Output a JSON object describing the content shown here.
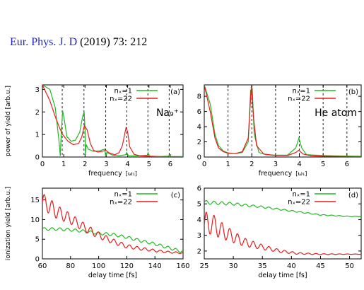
{
  "header": {
    "journal": "Eur. Phys. J. D",
    "citation": "(2019) 73: 212"
  },
  "colors": {
    "green": "#22b822",
    "red": "#e81c1c",
    "journal": "#2626c8"
  },
  "chart_data": [
    {
      "panel": "(a)",
      "type": "line",
      "ylabel": "power of yield [arb.u.]",
      "xlabel": "frequency",
      "xlabel_unit": "[ω₁]",
      "xlim": [
        0,
        6.6
      ],
      "ylim": [
        0,
        3.2
      ],
      "xticks": [
        "0",
        "1",
        "2",
        "3",
        "4",
        "5",
        "6"
      ],
      "yticks": [
        "0",
        "1",
        "2",
        "3"
      ],
      "annotation": "Na₉⁺",
      "vlines": [
        0.93,
        1.95,
        2.97,
        3.96,
        4.95,
        5.95
      ],
      "legend_position": "top-right",
      "series": [
        {
          "name": "nₓ=1",
          "color": "green",
          "points": [
            [
              0,
              3.2
            ],
            [
              0.35,
              3.0
            ],
            [
              0.6,
              2.2
            ],
            [
              0.78,
              0.7
            ],
            [
              0.84,
              0.05
            ],
            [
              0.88,
              1.0
            ],
            [
              0.95,
              2.05
            ],
            [
              1.02,
              1.7
            ],
            [
              1.15,
              0.9
            ],
            [
              1.35,
              0.7
            ],
            [
              1.55,
              0.75
            ],
            [
              1.75,
              1.1
            ],
            [
              1.9,
              1.85
            ],
            [
              1.96,
              2.0
            ],
            [
              2.0,
              1.2
            ],
            [
              2.02,
              0.1
            ],
            [
              2.06,
              0.55
            ],
            [
              2.15,
              0.35
            ],
            [
              2.4,
              0.25
            ],
            [
              2.7,
              0.28
            ],
            [
              2.93,
              0.35
            ],
            [
              2.97,
              0.02
            ],
            [
              3.02,
              0.2
            ],
            [
              3.3,
              0.08
            ],
            [
              3.6,
              0.06
            ],
            [
              3.9,
              0.1
            ],
            [
              3.96,
              0.2
            ],
            [
              4.03,
              0.05
            ],
            [
              4.5,
              0.05
            ],
            [
              4.92,
              0.08
            ],
            [
              4.96,
              0.2
            ],
            [
              5.0,
              0.03
            ],
            [
              5.5,
              0.02
            ],
            [
              5.92,
              0.04
            ],
            [
              5.96,
              0.1
            ],
            [
              6.0,
              0.02
            ],
            [
              6.6,
              0.02
            ]
          ]
        },
        {
          "name": "nₓ=22",
          "color": "red",
          "points": [
            [
              0,
              3.2
            ],
            [
              0.35,
              2.5
            ],
            [
              0.6,
              1.8
            ],
            [
              0.8,
              1.3
            ],
            [
              0.95,
              1.0
            ],
            [
              1.2,
              0.7
            ],
            [
              1.45,
              0.55
            ],
            [
              1.7,
              0.6
            ],
            [
              1.85,
              0.9
            ],
            [
              1.97,
              1.4
            ],
            [
              2.1,
              1.2
            ],
            [
              2.25,
              0.6
            ],
            [
              2.4,
              0.3
            ],
            [
              2.6,
              0.22
            ],
            [
              2.8,
              0.25
            ],
            [
              2.97,
              0.3
            ],
            [
              3.1,
              0.2
            ],
            [
              3.4,
              0.1
            ],
            [
              3.6,
              0.2
            ],
            [
              3.75,
              0.5
            ],
            [
              3.88,
              1.1
            ],
            [
              3.93,
              1.33
            ],
            [
              4.0,
              1.1
            ],
            [
              4.1,
              0.45
            ],
            [
              4.3,
              0.12
            ],
            [
              4.6,
              0.05
            ],
            [
              5.0,
              0.04
            ],
            [
              5.5,
              0.02
            ],
            [
              6.6,
              0.01
            ]
          ]
        }
      ]
    },
    {
      "panel": "(b)",
      "type": "line",
      "ylabel": "",
      "xlabel": "frequency",
      "xlabel_unit": "[ω₁]",
      "xlim": [
        0,
        6.6
      ],
      "ylim": [
        0,
        9.5
      ],
      "xticks": [
        "0",
        "1",
        "2",
        "3",
        "4",
        "5",
        "6"
      ],
      "yticks": [
        "0",
        "2",
        "4",
        "6",
        "8"
      ],
      "annotation": "He atom",
      "vlines": [
        1,
        2,
        3,
        4,
        5,
        6
      ],
      "legend_position": "top-right",
      "series": [
        {
          "name": "nₓ=1",
          "color": "green",
          "points": [
            [
              0,
              9.5
            ],
            [
              0.25,
              7.0
            ],
            [
              0.45,
              3.0
            ],
            [
              0.6,
              1.5
            ],
            [
              0.8,
              0.8
            ],
            [
              1.0,
              0.55
            ],
            [
              1.3,
              0.45
            ],
            [
              1.6,
              0.6
            ],
            [
              1.85,
              2.0
            ],
            [
              1.95,
              8.8
            ],
            [
              2.02,
              9.0
            ],
            [
              2.1,
              3.0
            ],
            [
              2.3,
              0.6
            ],
            [
              2.6,
              0.3
            ],
            [
              3.0,
              0.25
            ],
            [
              3.5,
              0.25
            ],
            [
              3.85,
              1.2
            ],
            [
              3.98,
              2.5
            ],
            [
              4.1,
              1.2
            ],
            [
              4.3,
              0.3
            ],
            [
              5.0,
              0.2
            ],
            [
              5.5,
              0.15
            ],
            [
              6.6,
              0.1
            ]
          ]
        },
        {
          "name": "nₓ=22",
          "color": "red",
          "points": [
            [
              0,
              9.5
            ],
            [
              0.25,
              6.0
            ],
            [
              0.45,
              2.5
            ],
            [
              0.6,
              1.2
            ],
            [
              0.8,
              0.7
            ],
            [
              1.0,
              0.5
            ],
            [
              1.3,
              0.45
            ],
            [
              1.6,
              0.7
            ],
            [
              1.85,
              2.5
            ],
            [
              1.98,
              9.3
            ],
            [
              2.08,
              5.0
            ],
            [
              2.2,
              1.5
            ],
            [
              2.5,
              0.4
            ],
            [
              3.0,
              0.2
            ],
            [
              3.5,
              0.2
            ],
            [
              3.85,
              0.6
            ],
            [
              3.98,
              0.9
            ],
            [
              4.15,
              0.4
            ],
            [
              4.5,
              0.15
            ],
            [
              5.0,
              0.1
            ],
            [
              6.6,
              0.05
            ]
          ]
        }
      ]
    },
    {
      "panel": "(c)",
      "type": "line",
      "ylabel": "ionization yield [arb.u.]",
      "xlabel": "delay time [fs]",
      "xlim": [
        60,
        160
      ],
      "ylim": [
        0,
        18
      ],
      "xticks": [
        "60",
        "80",
        "100",
        "120",
        "140",
        "160"
      ],
      "yticks": [
        "0",
        "5",
        "10",
        "15"
      ],
      "legend_position": "top-right",
      "series": [
        {
          "name": "nₓ=1",
          "color": "green",
          "base": [
            [
              60,
              7.6
            ],
            [
              70,
              7.6
            ],
            [
              80,
              7.4
            ],
            [
              90,
              7.0
            ],
            [
              100,
              6.5
            ],
            [
              110,
              6.2
            ],
            [
              120,
              5.5
            ],
            [
              130,
              4.6
            ],
            [
              140,
              3.8
            ],
            [
              150,
              2.8
            ],
            [
              160,
              1.8
            ]
          ],
          "ripple_amplitude": 0.35,
          "ripple_period": 5.5
        },
        {
          "name": "nₓ=22",
          "color": "red",
          "base": [
            [
              60,
              14.5
            ],
            [
              65,
              13.5
            ],
            [
              70,
              12.0
            ],
            [
              80,
              10.2
            ],
            [
              90,
              8.0
            ],
            [
              100,
              6.0
            ],
            [
              110,
              4.5
            ],
            [
              120,
              3.2
            ],
            [
              130,
              2.6
            ],
            [
              140,
              2.1
            ],
            [
              150,
              1.7
            ],
            [
              160,
              1.5
            ]
          ],
          "ripple_amplitude": 2.2,
          "ripple_period": 5.5,
          "ripple_decay": 40
        }
      ]
    },
    {
      "panel": "(d)",
      "type": "line",
      "ylabel": "",
      "xlabel": "delay time [fs]",
      "xlim": [
        25,
        52
      ],
      "ylim": [
        1.5,
        6
      ],
      "xticks": [
        "25",
        "30",
        "35",
        "40",
        "45",
        "50"
      ],
      "yticks": [
        "2",
        "3",
        "4",
        "5",
        "6"
      ],
      "legend_position": "top-right",
      "series": [
        {
          "name": "nₓ=1",
          "color": "green",
          "base": [
            [
              25,
              5.1
            ],
            [
              30,
              5.0
            ],
            [
              35,
              4.8
            ],
            [
              40,
              4.55
            ],
            [
              45,
              4.3
            ],
            [
              50,
              4.2
            ],
            [
              52,
              4.2
            ]
          ],
          "ripple_amplitude": 0.12,
          "ripple_period": 1.35,
          "ripple_decay": 14
        },
        {
          "name": "nₓ=22",
          "color": "red",
          "base": [
            [
              25,
              3.6
            ],
            [
              26,
              3.8
            ],
            [
              28,
              3.3
            ],
            [
              30,
              2.9
            ],
            [
              32,
              2.55
            ],
            [
              35,
              2.25
            ],
            [
              38,
              2.0
            ],
            [
              41,
              1.85
            ],
            [
              45,
              1.8
            ],
            [
              52,
              1.8
            ]
          ],
          "ripple_amplitude": 0.85,
          "ripple_period": 1.35,
          "ripple_decay": 6
        }
      ]
    }
  ]
}
